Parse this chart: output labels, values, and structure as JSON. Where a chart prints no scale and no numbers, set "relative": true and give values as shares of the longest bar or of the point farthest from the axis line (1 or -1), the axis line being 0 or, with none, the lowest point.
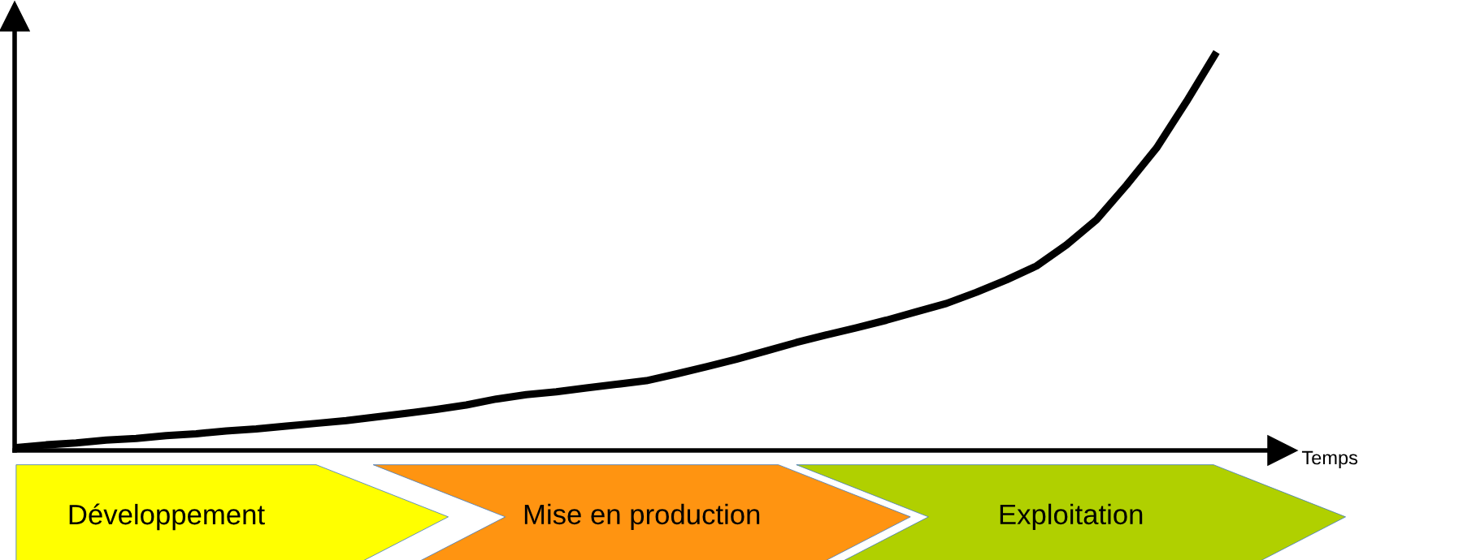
{
  "chart_data": {
    "type": "line",
    "relative": true,
    "xlabel": "Temps",
    "marker": "none",
    "line_style": "solid",
    "categories": [
      null,
      null,
      null,
      null,
      null,
      null,
      null,
      null,
      null,
      null,
      null,
      null,
      null,
      null,
      null,
      null,
      null,
      null,
      null,
      null,
      null,
      null,
      null,
      null,
      null,
      null,
      null,
      null,
      null,
      null,
      null,
      null,
      null,
      null,
      null,
      null,
      null,
      null,
      null,
      null,
      null
    ],
    "series": [
      {
        "color": "#000000",
        "values": [
          0.007,
          0.014,
          0.019,
          0.026,
          0.03,
          0.037,
          0.042,
          0.049,
          0.054,
          0.061,
          0.068,
          0.075,
          0.084,
          0.093,
          0.103,
          0.114,
          0.129,
          0.14,
          0.147,
          0.157,
          0.166,
          0.175,
          0.192,
          0.21,
          0.229,
          0.25,
          0.271,
          0.29,
          0.308,
          0.327,
          0.348,
          0.369,
          0.397,
          0.428,
          0.463,
          0.516,
          0.579,
          0.666,
          0.759,
          0.876,
          1.0
        ]
      }
    ],
    "annotations": [
      "Développement",
      "Mise en production",
      "Exploitation"
    ]
  }
}
